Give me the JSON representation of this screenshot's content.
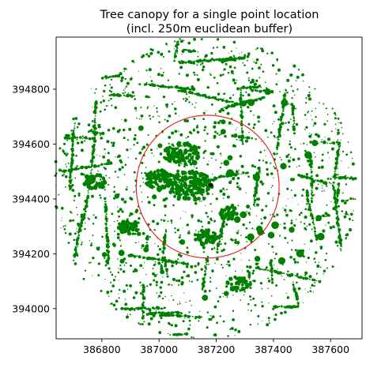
{
  "chart_data": {
    "type": "scatter",
    "title": "Tree canopy for a single point location",
    "subtitle": "(incl. 250m euclidean buffer)",
    "xlabel": "",
    "ylabel": "",
    "xlim": [
      386640,
      387710
    ],
    "ylim": [
      393890,
      394990
    ],
    "grid": false,
    "aspect": "equal",
    "x_ticks": [
      386800,
      387000,
      387200,
      387400,
      387600
    ],
    "y_ticks": [
      394000,
      394200,
      394400,
      394600,
      394800
    ],
    "x_tick_labels": [
      "386800",
      "387000",
      "387200",
      "387400",
      "387600"
    ],
    "y_tick_labels": [
      "394000",
      "394200",
      "394400",
      "394600",
      "394800"
    ],
    "canopy_color": "#008000",
    "buffer_color": "#e8151b",
    "point_location": {
      "x": 387170,
      "y": 394445
    },
    "buffer_radius_m": 250,
    "canopy_extent": {
      "center_x": 387160,
      "center_y": 394440,
      "radius_m": 530
    }
  }
}
